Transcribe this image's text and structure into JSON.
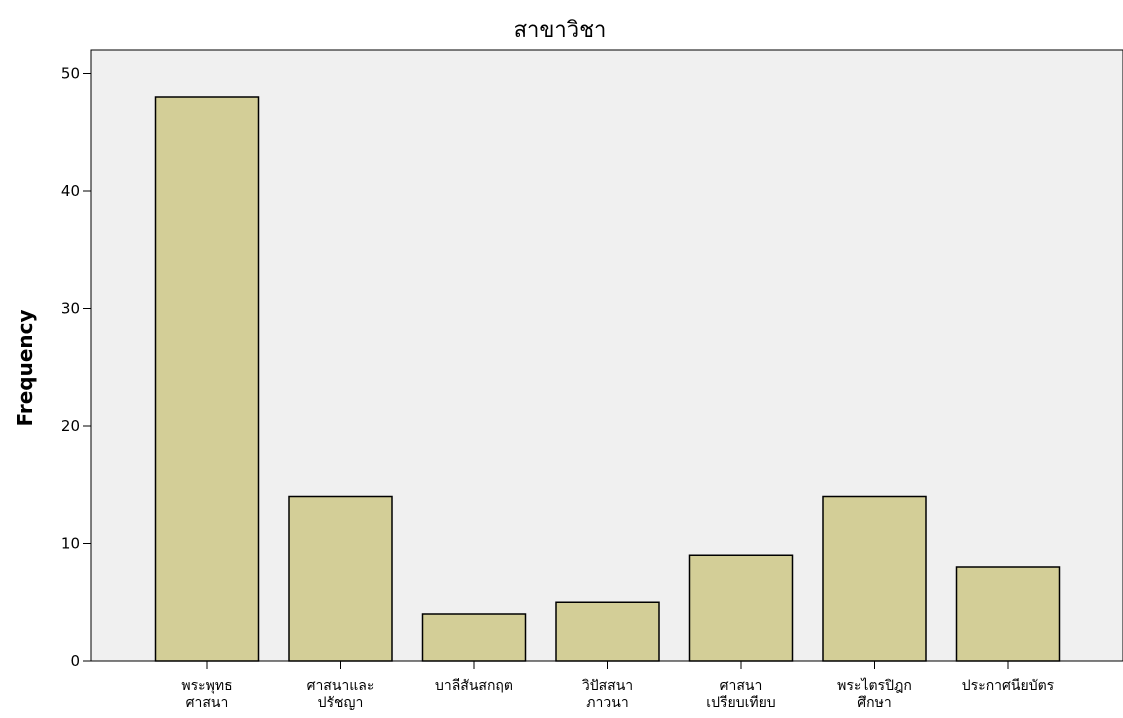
{
  "chart_data": {
    "type": "bar",
    "title": "สาขาวิชา",
    "xlabel": "",
    "ylabel": "Frequency",
    "ylim": [
      0,
      52
    ],
    "yticks": [
      0,
      10,
      20,
      30,
      40,
      50
    ],
    "categories": [
      [
        "พระพุทธ",
        "ศาสนา"
      ],
      [
        "ศาสนาและ",
        "ปรัชญา"
      ],
      [
        "บาลีสันสกฤต"
      ],
      [
        "วิปัสสนา",
        "ภาวนา"
      ],
      [
        "ศาสนา",
        "เปรียบเทียบ"
      ],
      [
        "พระไตรปิฎก",
        "ศึกษา"
      ],
      [
        "ประกาศนียบัตร"
      ]
    ],
    "values": [
      48,
      14,
      4,
      5,
      9,
      14,
      8
    ],
    "colors": {
      "plot_background": "#f0f0f0",
      "bar_fill": "#d3ce97",
      "bar_stroke": "#000000"
    },
    "grid": false,
    "legend": "none"
  }
}
